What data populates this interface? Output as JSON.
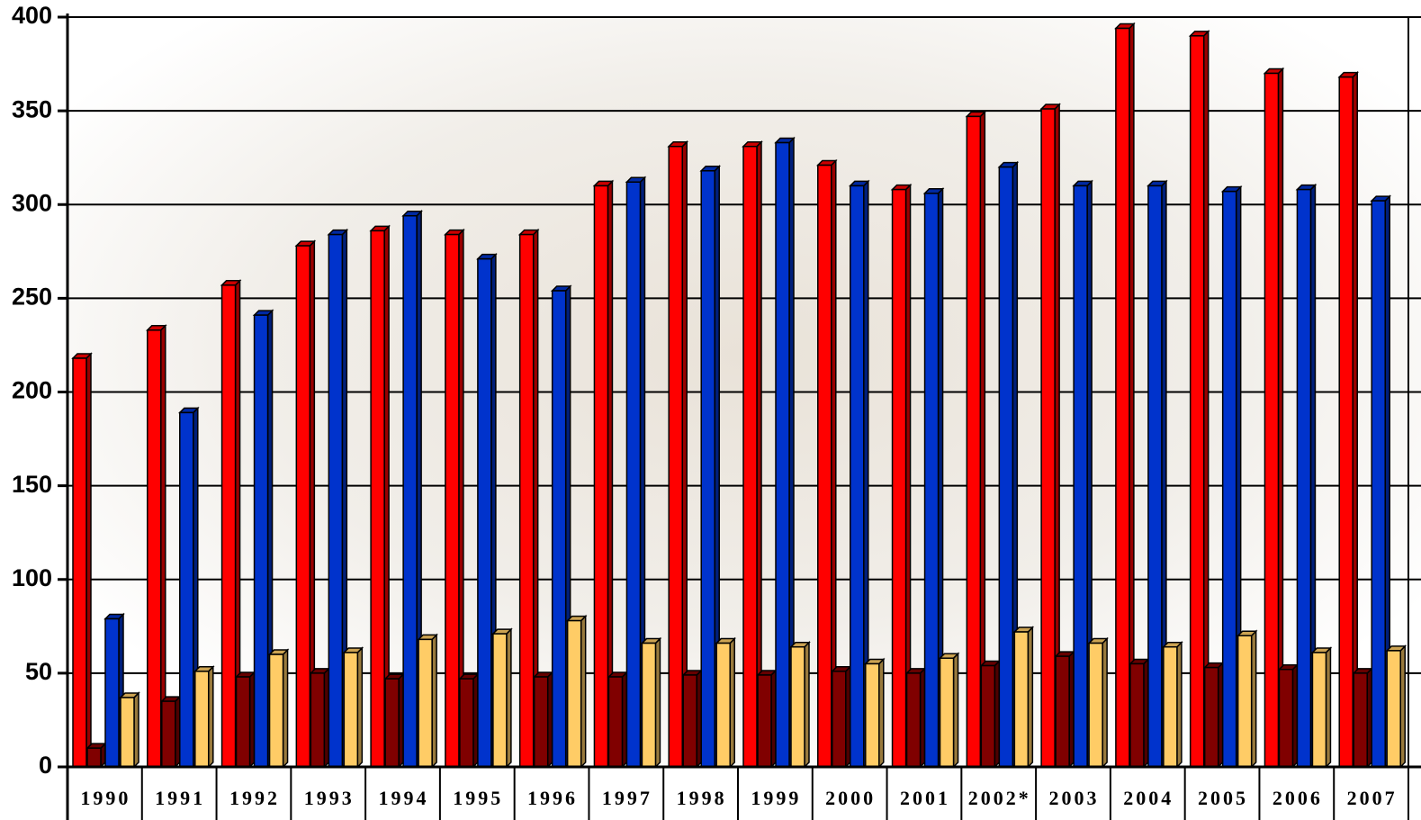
{
  "chart_data": {
    "type": "bar3d",
    "categories": [
      "1990",
      "1991",
      "1992",
      "1993",
      "1994",
      "1995",
      "1996",
      "1997",
      "1998",
      "1999",
      "2000",
      "2001",
      "2002*",
      "2003",
      "2004",
      "2005",
      "2006",
      "2007"
    ],
    "series": [
      {
        "color": "#ff0000",
        "values": [
          218,
          233,
          257,
          278,
          286,
          284,
          284,
          310,
          331,
          331,
          321,
          308,
          347,
          351,
          394,
          390,
          370,
          368
        ]
      },
      {
        "color": "#800000",
        "values": [
          10,
          35,
          48,
          50,
          47,
          47,
          48,
          48,
          49,
          49,
          51,
          50,
          54,
          59,
          55,
          53,
          52,
          50
        ]
      },
      {
        "color": "#0033cc",
        "values": [
          79,
          189,
          241,
          284,
          294,
          271,
          254,
          312,
          318,
          333,
          310,
          306,
          320,
          310,
          310,
          307,
          308,
          302
        ]
      },
      {
        "color": "#ffcc66",
        "values": [
          37,
          51,
          60,
          61,
          68,
          71,
          78,
          66,
          66,
          64,
          55,
          58,
          72,
          66,
          64,
          70,
          61,
          62
        ]
      }
    ],
    "ylim": [
      0,
      400
    ],
    "yticks": [
      0,
      50,
      100,
      150,
      200,
      250,
      300,
      350,
      400
    ],
    "grid": true
  }
}
